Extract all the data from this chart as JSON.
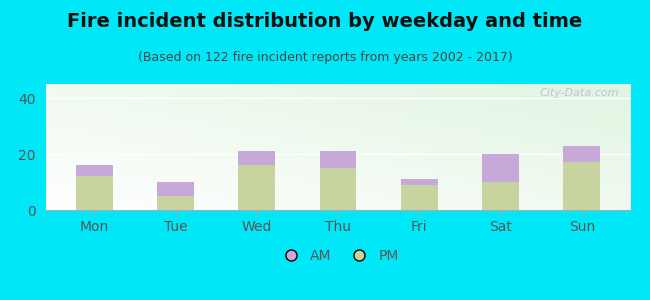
{
  "title": "Fire incident distribution by weekday and time",
  "subtitle": "(Based on 122 fire incident reports from years 2002 - 2017)",
  "categories": [
    "Mon",
    "Tue",
    "Wed",
    "Thu",
    "Fri",
    "Sat",
    "Sun"
  ],
  "pm_values": [
    12,
    5,
    16,
    15,
    9,
    10,
    17
  ],
  "am_values": [
    4,
    5,
    5,
    6,
    2,
    10,
    6
  ],
  "am_color": "#c8a8d8",
  "pm_color": "#c8d4a0",
  "background_outer": "#00e8f8",
  "ylim": [
    0,
    45
  ],
  "yticks": [
    0,
    20,
    40
  ],
  "bar_width": 0.45,
  "title_fontsize": 14,
  "subtitle_fontsize": 9,
  "tick_fontsize": 10,
  "legend_fontsize": 10,
  "watermark_text": "City-Data.com"
}
